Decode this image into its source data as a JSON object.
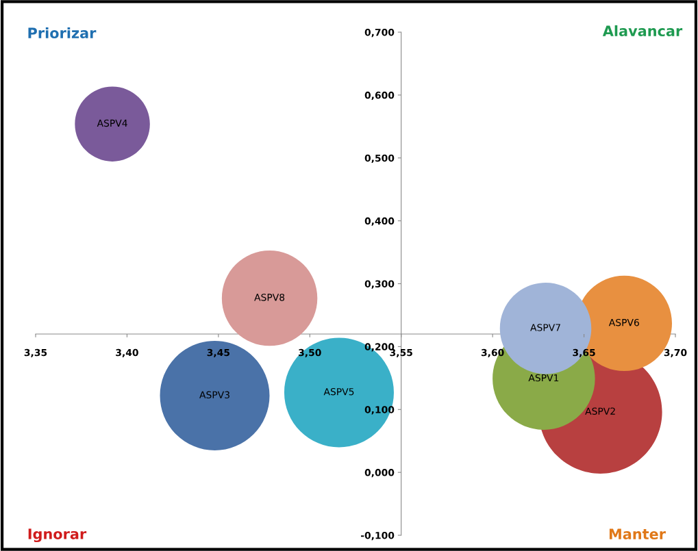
{
  "chart_data": {
    "type": "bubble",
    "xlim": [
      3.35,
      3.7
    ],
    "ylim": [
      -0.1,
      0.7
    ],
    "xticks": [
      {
        "value": 3.35,
        "label": "3,35"
      },
      {
        "value": 3.4,
        "label": "3,40"
      },
      {
        "value": 3.45,
        "label": "3,45"
      },
      {
        "value": 3.5,
        "label": "3,50"
      },
      {
        "value": 3.55,
        "label": "3,55"
      },
      {
        "value": 3.6,
        "label": "3,60"
      },
      {
        "value": 3.65,
        "label": "3,65"
      },
      {
        "value": 3.7,
        "label": "3,70"
      }
    ],
    "yticks": [
      {
        "value": -0.1,
        "label": "-0,100"
      },
      {
        "value": 0.0,
        "label": "0,000"
      },
      {
        "value": 0.1,
        "label": "0,100"
      },
      {
        "value": 0.2,
        "label": "0,200"
      },
      {
        "value": 0.3,
        "label": "0,300"
      },
      {
        "value": 0.4,
        "label": "0,400"
      },
      {
        "value": 0.5,
        "label": "0,500"
      },
      {
        "value": 0.6,
        "label": "0,600"
      },
      {
        "value": 0.7,
        "label": "0,700"
      }
    ],
    "grid": false,
    "annotations": [
      "Priorizar",
      "Alavancar",
      "Ignorar",
      "Manter"
    ],
    "series": [
      {
        "name": "ASPV4",
        "color": "#7a5a9a",
        "x": [
          3.392
        ],
        "values": [
          0.554
        ],
        "sizes": [
          0.37
        ]
      },
      {
        "name": "ASPV8",
        "color": "#d89a98",
        "x": [
          3.478
        ],
        "values": [
          0.277
        ],
        "sizes": [
          0.6
        ]
      },
      {
        "name": "ASPV3",
        "color": "#4a72a8",
        "x": [
          3.448
        ],
        "values": [
          0.122
        ],
        "sizes": [
          0.79
        ]
      },
      {
        "name": "ASPV5",
        "color": "#3ab0c8",
        "x": [
          3.516
        ],
        "values": [
          0.127
        ],
        "sizes": [
          0.79
        ]
      },
      {
        "name": "ASPV2",
        "color": "#b84040",
        "x": [
          3.659
        ],
        "values": [
          0.096
        ],
        "sizes": [
          1
        ]
      },
      {
        "name": "ASPV1",
        "color": "#8aaa48",
        "x": [
          3.628
        ],
        "values": [
          0.149
        ],
        "sizes": [
          0.69
        ]
      },
      {
        "name": "ASPV6",
        "color": "#e89040",
        "x": [
          3.672
        ],
        "values": [
          0.237
        ],
        "sizes": [
          0.6
        ]
      },
      {
        "name": "ASPV7",
        "color": "#a0b4d8",
        "x": [
          3.629
        ],
        "values": [
          0.229
        ],
        "sizes": [
          0.55
        ]
      }
    ]
  }
}
